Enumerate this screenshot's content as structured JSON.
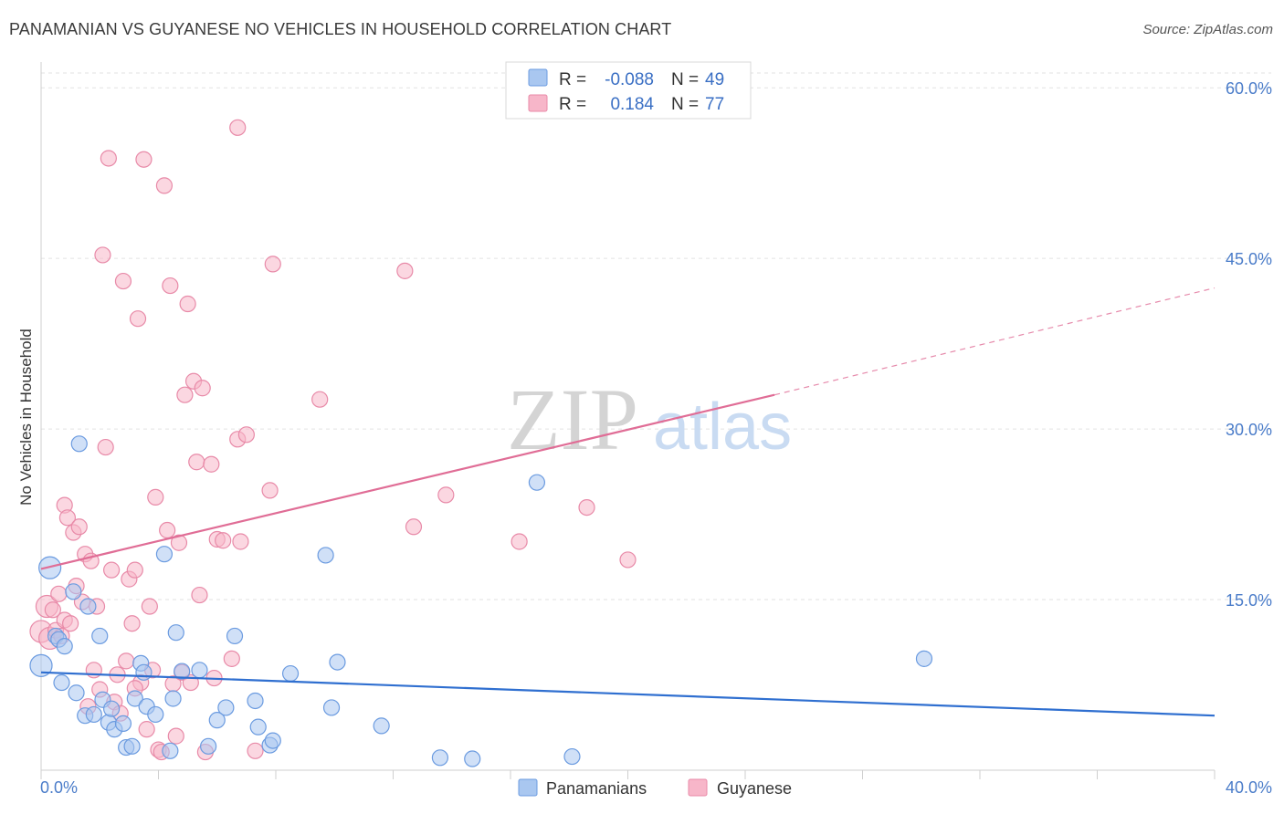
{
  "title": "PANAMANIAN VS GUYANESE NO VEHICLES IN HOUSEHOLD CORRELATION CHART",
  "source": "Source: ZipAtlas.com",
  "watermark": {
    "zip": "ZIP",
    "atlas": "atlas"
  },
  "legend": {
    "rows": [
      {
        "r_label": "R =",
        "r_value": "-0.088",
        "n_label": "N =",
        "n_value": "49",
        "color": "#a9c7f0",
        "stroke": "#6b9be0"
      },
      {
        "r_label": "R =",
        "r_value": "0.184",
        "n_label": "N =",
        "n_value": "77",
        "color": "#f7b6c9",
        "stroke": "#e88aa8"
      }
    ]
  },
  "bottom_legend": [
    "Panamanians",
    "Guyanese"
  ],
  "chart_data": {
    "type": "scatter",
    "title": "PANAMANIAN VS GUYANESE NO VEHICLES IN HOUSEHOLD CORRELATION CHART",
    "xlabel": "",
    "ylabel": "No Vehicles in Household",
    "xlim": [
      0,
      40
    ],
    "ylim": [
      0,
      60
    ],
    "x_tick_labels": [
      "0.0%",
      "40.0%"
    ],
    "y_ticks": [
      15,
      30,
      45,
      60
    ],
    "y_tick_labels": [
      "15.0%",
      "30.0%",
      "45.0%",
      "60.0%"
    ],
    "grid": true,
    "legend_position": "top-center",
    "series": [
      {
        "name": "Panamanians",
        "color": "#a9c7f0",
        "stroke": "#6b9be0",
        "trend_color": "#2f6fd0",
        "trend": {
          "x0": 0,
          "y0": 8.6,
          "x1": 40,
          "y1": 4.8
        },
        "points": [
          [
            0.0,
            9.2
          ],
          [
            0.3,
            17.8
          ],
          [
            0.5,
            11.8
          ],
          [
            0.6,
            11.5
          ],
          [
            0.7,
            7.7
          ],
          [
            0.8,
            10.9
          ],
          [
            1.1,
            15.7
          ],
          [
            1.2,
            6.8
          ],
          [
            1.3,
            28.7
          ],
          [
            1.5,
            4.8
          ],
          [
            1.6,
            14.4
          ],
          [
            1.8,
            4.9
          ],
          [
            2.0,
            11.8
          ],
          [
            2.1,
            6.2
          ],
          [
            2.3,
            4.2
          ],
          [
            2.4,
            5.4
          ],
          [
            2.5,
            3.6
          ],
          [
            2.8,
            4.1
          ],
          [
            2.9,
            2.0
          ],
          [
            3.1,
            2.1
          ],
          [
            3.2,
            6.3
          ],
          [
            3.4,
            9.4
          ],
          [
            3.5,
            8.6
          ],
          [
            3.6,
            5.6
          ],
          [
            3.9,
            4.9
          ],
          [
            4.2,
            19.0
          ],
          [
            4.4,
            1.7
          ],
          [
            4.5,
            6.3
          ],
          [
            4.6,
            12.1
          ],
          [
            4.8,
            8.7
          ],
          [
            5.4,
            8.8
          ],
          [
            5.7,
            2.1
          ],
          [
            6.0,
            4.4
          ],
          [
            6.3,
            5.5
          ],
          [
            6.6,
            11.8
          ],
          [
            7.3,
            6.1
          ],
          [
            7.4,
            3.8
          ],
          [
            7.8,
            2.2
          ],
          [
            7.9,
            2.6
          ],
          [
            8.5,
            8.5
          ],
          [
            9.7,
            18.9
          ],
          [
            9.9,
            5.5
          ],
          [
            10.1,
            9.5
          ],
          [
            11.6,
            3.9
          ],
          [
            13.6,
            1.1
          ],
          [
            14.7,
            1.0
          ],
          [
            16.9,
            25.3
          ],
          [
            18.1,
            1.2
          ],
          [
            30.1,
            9.8
          ]
        ]
      },
      {
        "name": "Guyanese",
        "color": "#f7b6c9",
        "stroke": "#e88aa8",
        "trend_color": "#e06d96",
        "trend": {
          "x0": 0,
          "y0": 17.7,
          "x1": 25,
          "y1": 33.0
        },
        "trend_dashed": {
          "x0": 25,
          "y0": 33.0,
          "x1": 40,
          "y1": 42.4
        },
        "points": [
          [
            0.0,
            12.2
          ],
          [
            0.2,
            14.4
          ],
          [
            0.3,
            11.6
          ],
          [
            0.4,
            14.1
          ],
          [
            0.5,
            12.3
          ],
          [
            0.6,
            15.5
          ],
          [
            0.7,
            11.8
          ],
          [
            0.8,
            13.2
          ],
          [
            0.8,
            23.3
          ],
          [
            0.9,
            22.2
          ],
          [
            1.0,
            12.9
          ],
          [
            1.1,
            20.9
          ],
          [
            1.2,
            16.2
          ],
          [
            1.3,
            21.4
          ],
          [
            1.4,
            14.8
          ],
          [
            1.5,
            19.0
          ],
          [
            1.6,
            5.6
          ],
          [
            1.7,
            18.4
          ],
          [
            1.8,
            8.8
          ],
          [
            1.9,
            14.4
          ],
          [
            2.0,
            7.1
          ],
          [
            2.1,
            45.3
          ],
          [
            2.2,
            28.4
          ],
          [
            2.3,
            53.8
          ],
          [
            2.4,
            17.6
          ],
          [
            2.5,
            6.0
          ],
          [
            2.6,
            8.4
          ],
          [
            2.7,
            5.0
          ],
          [
            2.8,
            43.0
          ],
          [
            2.9,
            9.6
          ],
          [
            3.0,
            16.8
          ],
          [
            3.1,
            12.9
          ],
          [
            3.2,
            17.6
          ],
          [
            3.3,
            39.7
          ],
          [
            3.4,
            7.7
          ],
          [
            3.5,
            53.7
          ],
          [
            3.6,
            3.6
          ],
          [
            3.7,
            14.4
          ],
          [
            3.8,
            8.8
          ],
          [
            3.9,
            24.0
          ],
          [
            4.0,
            1.8
          ],
          [
            4.1,
            1.6
          ],
          [
            4.2,
            51.4
          ],
          [
            4.3,
            21.1
          ],
          [
            4.4,
            42.6
          ],
          [
            4.5,
            7.6
          ],
          [
            4.6,
            3.0
          ],
          [
            4.7,
            20.0
          ],
          [
            4.8,
            8.6
          ],
          [
            4.9,
            33.0
          ],
          [
            5.0,
            41.0
          ],
          [
            5.1,
            7.7
          ],
          [
            5.2,
            34.2
          ],
          [
            5.3,
            27.1
          ],
          [
            5.4,
            15.4
          ],
          [
            5.5,
            33.6
          ],
          [
            5.6,
            1.6
          ],
          [
            5.8,
            26.9
          ],
          [
            5.9,
            8.1
          ],
          [
            6.0,
            20.3
          ],
          [
            6.2,
            20.2
          ],
          [
            6.5,
            9.8
          ],
          [
            6.7,
            29.1
          ],
          [
            6.8,
            20.1
          ],
          [
            6.7,
            56.5
          ],
          [
            7.0,
            29.5
          ],
          [
            7.3,
            1.7
          ],
          [
            7.8,
            24.6
          ],
          [
            7.9,
            44.5
          ],
          [
            9.5,
            32.6
          ],
          [
            12.4,
            43.9
          ],
          [
            12.7,
            21.4
          ],
          [
            13.8,
            24.2
          ],
          [
            16.3,
            20.1
          ],
          [
            18.6,
            23.1
          ],
          [
            20.0,
            18.5
          ],
          [
            3.2,
            7.2
          ]
        ]
      }
    ]
  }
}
